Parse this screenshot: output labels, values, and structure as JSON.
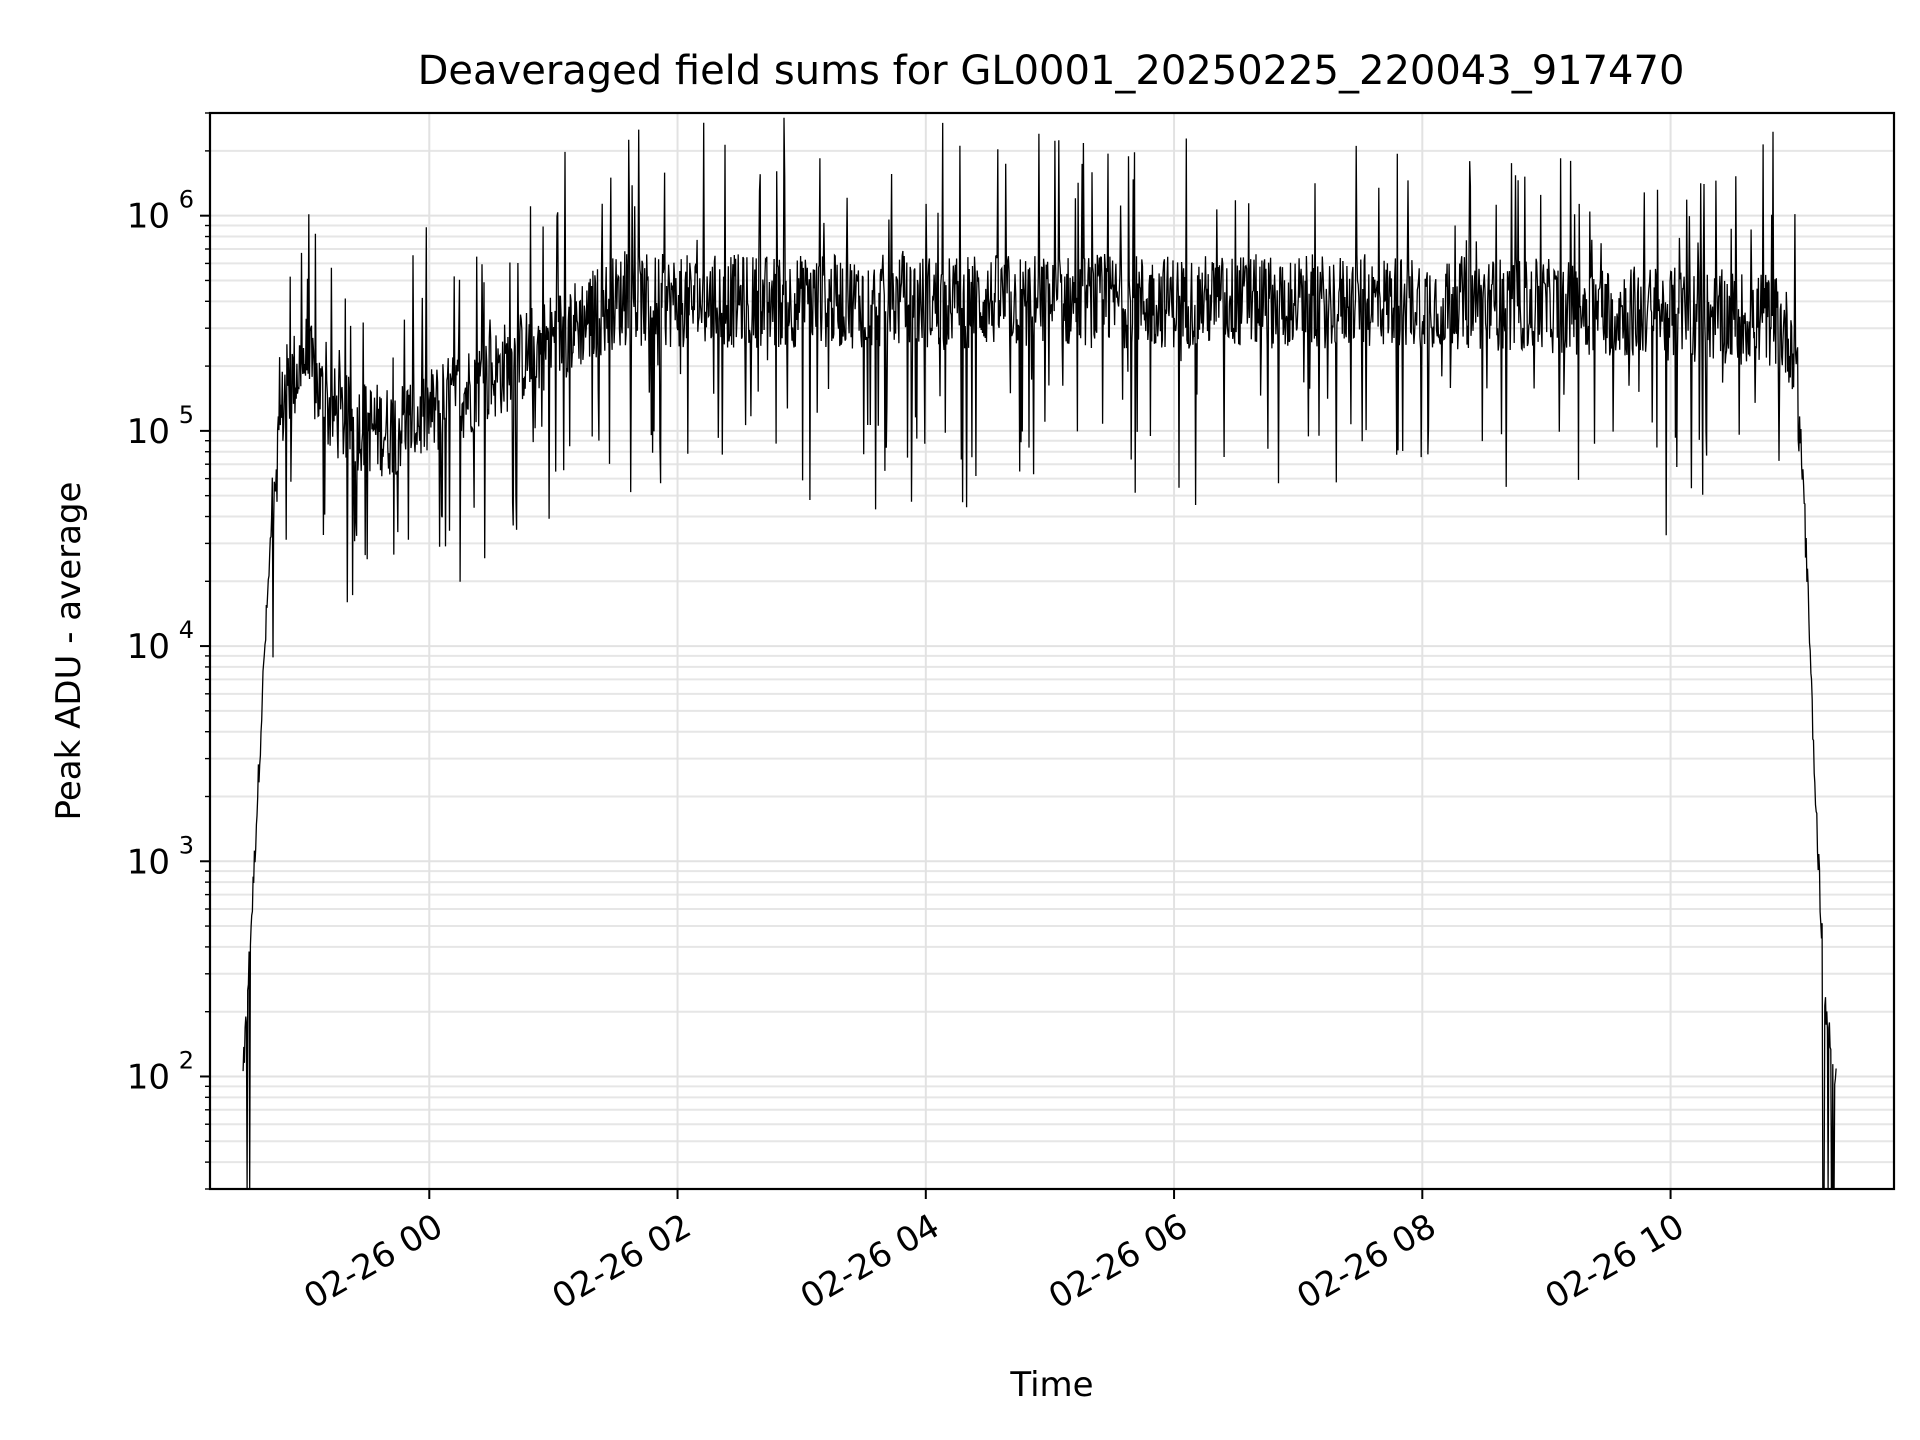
{
  "chart_data": {
    "type": "line",
    "title": "Deaveraged field sums for GL0001_20250225_220043_917470",
    "xlabel": "Time",
    "ylabel": "Peak ADU - average",
    "yscale": "log",
    "xlim": [
      "2025-02-25 22:14",
      "2025-02-26 11:48"
    ],
    "ylim": [
      30,
      3000000
    ],
    "grid": true,
    "x_ticks": [
      "02-26 00",
      "02-26 02",
      "02-26 04",
      "02-26 06",
      "02-26 08",
      "02-26 10"
    ],
    "x_tick_values": [
      "2025-02-26 00:00",
      "2025-02-26 02:00",
      "2025-02-26 04:00",
      "2025-02-26 06:00",
      "2025-02-26 08:00",
      "2025-02-26 10:00"
    ],
    "y_ticks": [
      {
        "base": "10",
        "exp": "2",
        "value": 100
      },
      {
        "base": "10",
        "exp": "3",
        "value": 1000
      },
      {
        "base": "10",
        "exp": "4",
        "value": 10000
      },
      {
        "base": "10",
        "exp": "5",
        "value": 100000
      },
      {
        "base": "10",
        "exp": "6",
        "value": 1000000
      }
    ],
    "series": [
      {
        "color": "#000000",
        "description": "noisy trace; rises steeply from ~1e2 near 22:30 to ~2e5 by 23:00, dips to ~1e5 around 00:00, rises to ~4e5 by 01:30, plateau ~3e5-5e5 with spikes to ~1.5e6 until ~11:00, then falls steeply to ~1e2 by ~11:15",
        "x": [
          "2025-02-25 22:30",
          "2025-02-25 22:35",
          "2025-02-25 22:40",
          "2025-02-25 22:45",
          "2025-02-25 22:50",
          "2025-02-25 23:00",
          "2025-02-25 23:10",
          "2025-02-25 23:20",
          "2025-02-25 23:40",
          "2025-02-26 00:00",
          "2025-02-26 00:30",
          "2025-02-26 01:00",
          "2025-02-26 01:30",
          "2025-02-26 02:00",
          "2025-02-26 03:00",
          "2025-02-26 04:00",
          "2025-02-26 05:00",
          "2025-02-26 06:00",
          "2025-02-26 07:00",
          "2025-02-26 08:00",
          "2025-02-26 09:00",
          "2025-02-26 10:00",
          "2025-02-26 10:50",
          "2025-02-26 11:00",
          "2025-02-26 11:05",
          "2025-02-26 11:10",
          "2025-02-26 11:15",
          "2025-02-26 11:20"
        ],
        "y": [
          100,
          800,
          8000,
          60000,
          150000,
          220000,
          130000,
          110000,
          100000,
          120000,
          180000,
          270000,
          400000,
          400000,
          400000,
          400000,
          400000,
          400000,
          400000,
          400000,
          380000,
          350000,
          330000,
          250000,
          40000,
          2000,
          200,
          100
        ]
      }
    ]
  }
}
